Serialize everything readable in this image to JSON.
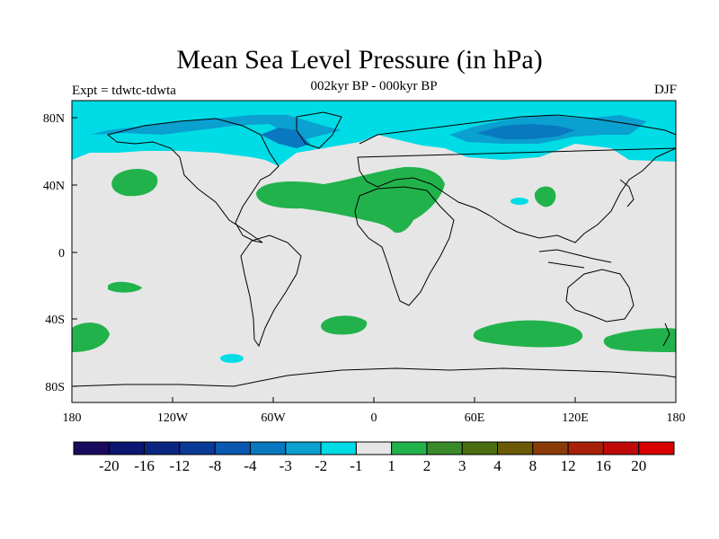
{
  "header": {
    "title": "Mean Sea Level Pressure (in hPa)",
    "experiment": "Expt = tdwtc-tdwta",
    "period": "002kyr BP - 000kyr BP",
    "season": "DJF"
  },
  "map": {
    "lon_ticks": [
      "180",
      "120W",
      "60W",
      "0",
      "60E",
      "120E",
      "180"
    ],
    "lat_ticks": [
      "80N",
      "40N",
      "0",
      "40S",
      "80S"
    ],
    "background_color": "#e6e6e6"
  },
  "colorbar": {
    "labels": [
      "-20",
      "-16",
      "-12",
      "-8",
      "-4",
      "-3",
      "-2",
      "-1",
      "1",
      "2",
      "3",
      "4",
      "8",
      "12",
      "16",
      "20"
    ],
    "colors": [
      "#1a0a5e",
      "#0a1670",
      "#0a2680",
      "#0a3a98",
      "#0a58b0",
      "#0a78c0",
      "#0aa0d0",
      "#00dce6",
      "#e6e6e6",
      "#22b24c",
      "#3a8a2a",
      "#4a6e10",
      "#6a5a08",
      "#8a3c08",
      "#a82008",
      "#c00a0a",
      "#d80000"
    ]
  }
}
